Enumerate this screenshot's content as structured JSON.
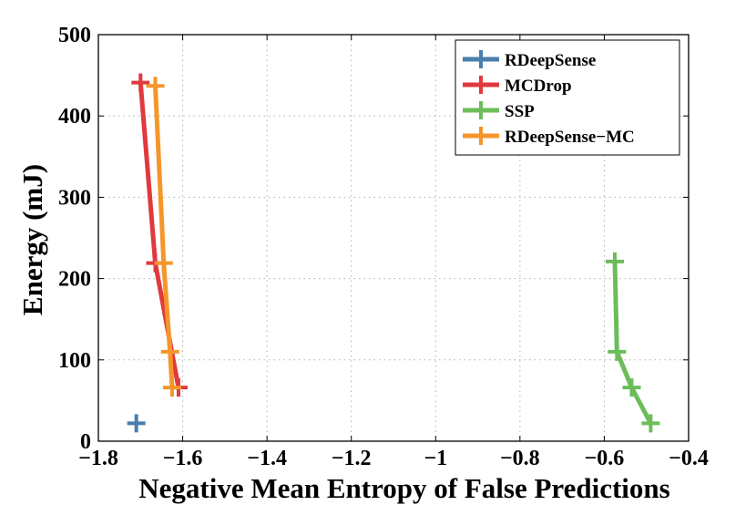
{
  "chart_data": {
    "type": "line",
    "title": "",
    "xlabel": "Negative Mean Entropy of False Predictions",
    "ylabel": "Energy (mJ)",
    "xlim": [
      -1.8,
      -0.4
    ],
    "ylim": [
      0,
      500
    ],
    "xticks": [
      -1.8,
      -1.6,
      -1.4,
      -1.2,
      -1,
      -0.8,
      -0.6,
      -0.4
    ],
    "xtick_labels": [
      "−1.8",
      "−1.6",
      "−1.4",
      "−1.2",
      "−1",
      "−0.8",
      "−0.6",
      "−0.4"
    ],
    "yticks": [
      0,
      100,
      200,
      300,
      400,
      500
    ],
    "ytick_labels": [
      "0",
      "100",
      "200",
      "300",
      "400",
      "500"
    ],
    "grid": true,
    "legend_position": "top-right",
    "series": [
      {
        "name": "RDeepSense",
        "color": "#4a7fad",
        "marker": "+",
        "points": [
          {
            "x": -1.71,
            "y": 22
          }
        ]
      },
      {
        "name": "MCDrop",
        "color": "#e0393e",
        "marker": "+",
        "points": [
          {
            "x": -1.7,
            "y": 441
          },
          {
            "x": -1.665,
            "y": 219
          },
          {
            "x": -1.61,
            "y": 66
          }
        ]
      },
      {
        "name": "SSP",
        "color": "#6cbd5a",
        "marker": "+",
        "points": [
          {
            "x": -0.575,
            "y": 221
          },
          {
            "x": -0.57,
            "y": 110
          },
          {
            "x": -0.535,
            "y": 66
          },
          {
            "x": -0.49,
            "y": 22
          }
        ]
      },
      {
        "name": "RDeepSense−MC",
        "color": "#f5962a",
        "marker": "+",
        "points": [
          {
            "x": -1.665,
            "y": 437
          },
          {
            "x": -1.645,
            "y": 219
          },
          {
            "x": -1.63,
            "y": 110
          },
          {
            "x": -1.625,
            "y": 66
          }
        ]
      }
    ]
  }
}
